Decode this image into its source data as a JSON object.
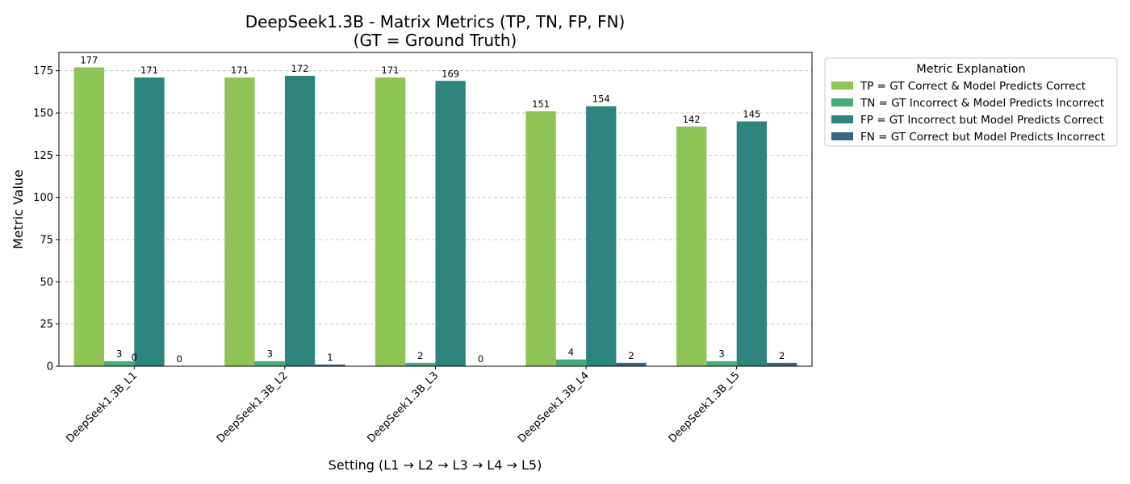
{
  "chart_data": {
    "type": "bar",
    "title": "DeepSeek1.3B - Matrix Metrics (TP, TN, FP, FN)",
    "subtitle": "(GT = Ground Truth)",
    "xlabel": "Setting (L1 → L2 → L3 → L4 → L5)",
    "ylabel": "Metric Value",
    "ylim": [
      0,
      185.85
    ],
    "yticks": [
      0,
      25,
      50,
      75,
      100,
      125,
      150,
      175
    ],
    "grid": true,
    "legend_position": "outside-top-right",
    "legend_title": "Metric Explanation",
    "categories": [
      "DeepSeek1.3B_L1",
      "DeepSeek1.3B_L2",
      "DeepSeek1.3B_L3",
      "DeepSeek1.3B_L4",
      "DeepSeek1.3B_L5"
    ],
    "series": [
      {
        "name": "TP = GT Correct & Model Predicts Correct",
        "color": "#8fc457",
        "values": [
          177,
          171,
          171,
          151,
          142
        ]
      },
      {
        "name": "TN = GT Incorrect & Model Predicts Incorrect",
        "color": "#45ab78",
        "values": [
          3,
          3,
          2,
          4,
          3
        ]
      },
      {
        "name": "FP = GT Incorrect but Model Predicts Correct",
        "color": "#2d857e",
        "values": [
          171,
          172,
          169,
          154,
          145
        ]
      },
      {
        "name": "FN = GT Correct but Model Predicts Incorrect",
        "color": "#3a6682",
        "values": [
          0,
          1,
          0,
          2,
          2
        ]
      }
    ],
    "annotations": [
      {
        "text": "0",
        "category": "DeepSeek1.3B_L1",
        "near_series": 1
      }
    ]
  }
}
